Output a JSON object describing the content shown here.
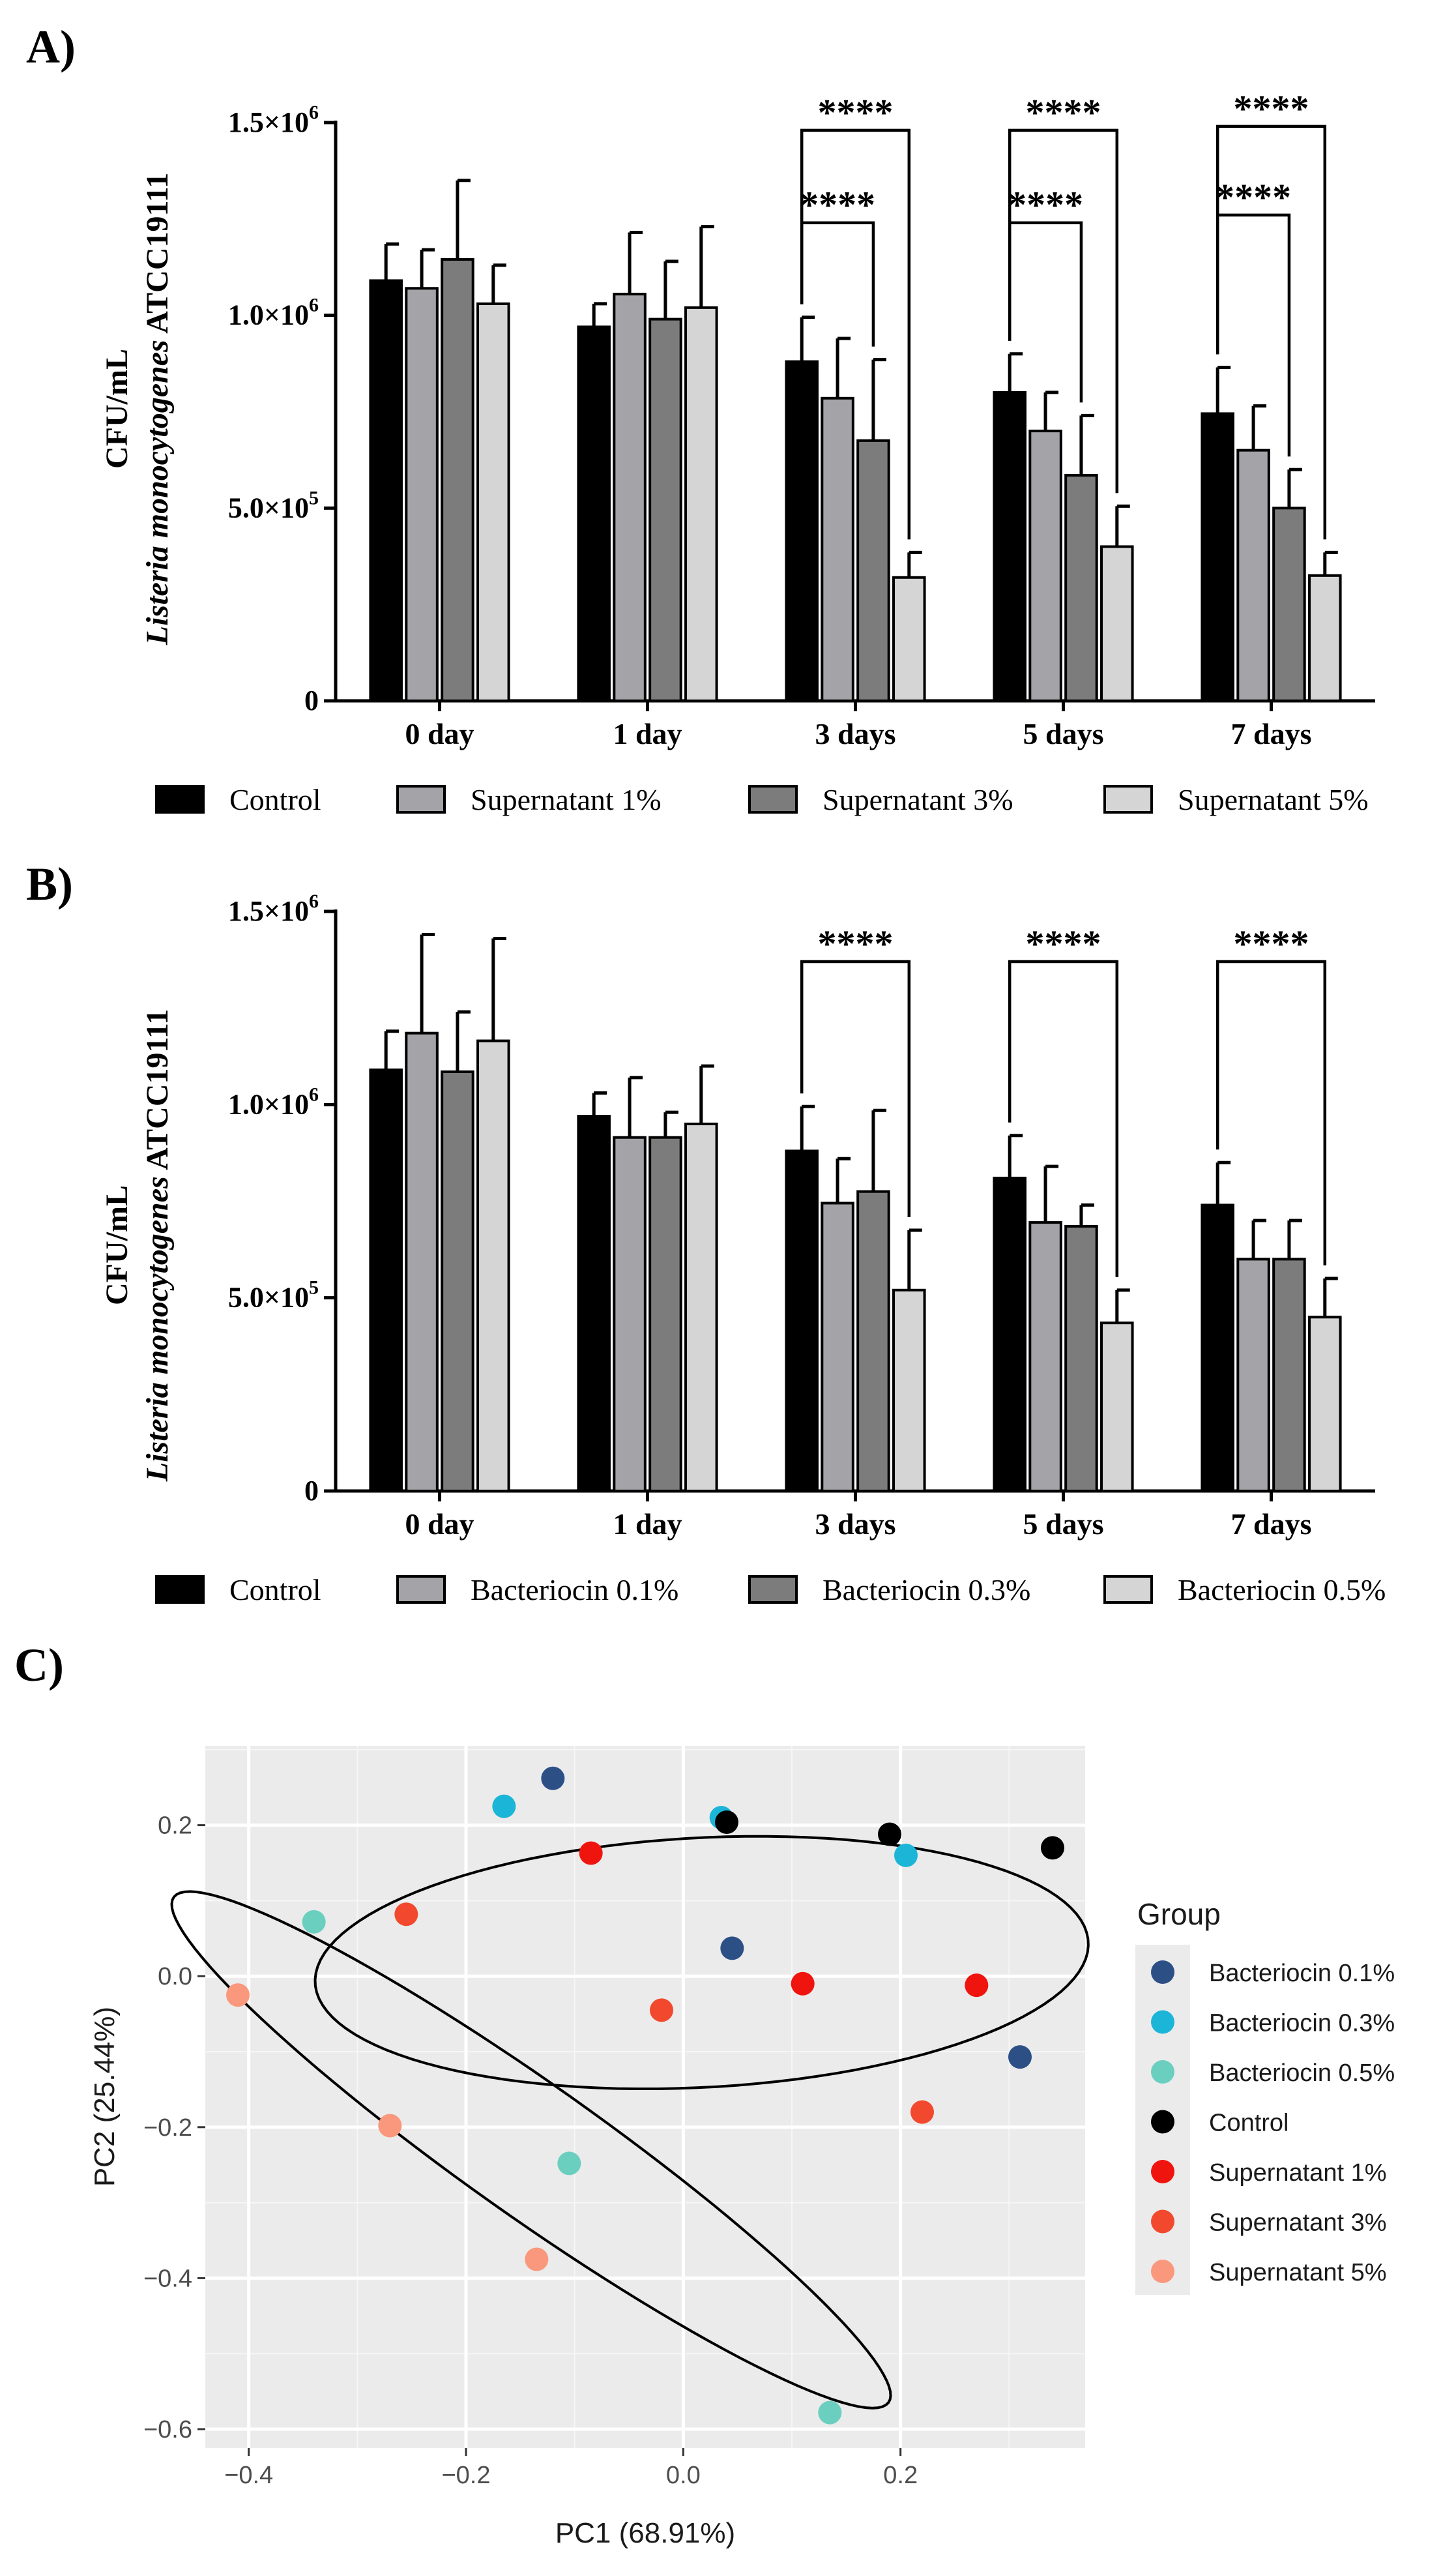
{
  "panels": [
    {
      "label": "A)",
      "chart_data": {
        "type": "bar",
        "ylabel_line1": "CFU/mL",
        "ylabel_line2_italic": "Listeria monocytogenes",
        "ylabel_line2_plain": " ATCC19111",
        "ylim": [
          0,
          1500000
        ],
        "y_ticks": [
          {
            "value": 0,
            "mant": "0",
            "exp": ""
          },
          {
            "value": 500000,
            "mant": "5.0×10",
            "exp": "5"
          },
          {
            "value": 1000000,
            "mant": "1.0×10",
            "exp": "6"
          },
          {
            "value": 1500000,
            "mant": "1.5×10",
            "exp": "6"
          }
        ],
        "categories": [
          "0 day",
          "1 day",
          "3 days",
          "5 days",
          "7 days"
        ],
        "series": [
          {
            "name": "Control",
            "color": "#000000",
            "values": [
              1090000,
              970000,
              880000,
              800000,
              745000
            ],
            "errors": [
              95000,
              60000,
              115000,
              100000,
              120000
            ]
          },
          {
            "name": "Supernatant 1%",
            "color": "#a3a3a8",
            "values": [
              1070000,
              1055000,
              785000,
              700000,
              650000
            ],
            "errors": [
              100000,
              160000,
              155000,
              100000,
              115000
            ]
          },
          {
            "name": "Supernatant 3%",
            "color": "#7c7c7c",
            "values": [
              1145000,
              990000,
              675000,
              585000,
              500000
            ],
            "errors": [
              205000,
              150000,
              210000,
              155000,
              100000
            ]
          },
          {
            "name": "Supernatant 5%",
            "color": "#d5d5d5",
            "values": [
              1030000,
              1020000,
              320000,
              400000,
              325000
            ],
            "errors": [
              100000,
              210000,
              65000,
              105000,
              60000
            ]
          }
        ],
        "brackets": [
          {
            "category": 2,
            "from": 0,
            "to": 2,
            "level": 1.24,
            "text": "****"
          },
          {
            "category": 2,
            "from": 0,
            "to": 3,
            "level": 1.48,
            "text": "****"
          },
          {
            "category": 3,
            "from": 0,
            "to": 2,
            "level": 1.24,
            "text": "****"
          },
          {
            "category": 3,
            "from": 0,
            "to": 3,
            "level": 1.48,
            "text": "****"
          },
          {
            "category": 4,
            "from": 0,
            "to": 2,
            "level": 1.26,
            "text": "****"
          },
          {
            "category": 4,
            "from": 0,
            "to": 3,
            "level": 1.49,
            "text": "****"
          }
        ]
      }
    },
    {
      "label": "B)",
      "chart_data": {
        "type": "bar",
        "ylabel_line1": "CFU/mL",
        "ylabel_line2_italic": "Listeria monocytogenes",
        "ylabel_line2_plain": " ATCC19111",
        "ylim": [
          0,
          1500000
        ],
        "y_ticks": [
          {
            "value": 0,
            "mant": "0",
            "exp": ""
          },
          {
            "value": 500000,
            "mant": "5.0×10",
            "exp": "5"
          },
          {
            "value": 1000000,
            "mant": "1.0×10",
            "exp": "6"
          },
          {
            "value": 1500000,
            "mant": "1.5×10",
            "exp": "6"
          }
        ],
        "categories": [
          "0 day",
          "1 day",
          "3 days",
          "5 days",
          "7 days"
        ],
        "series": [
          {
            "name": "Control",
            "color": "#000000",
            "values": [
              1090000,
              970000,
              880000,
              810000,
              740000
            ],
            "errors": [
              100000,
              60000,
              115000,
              110000,
              110000
            ]
          },
          {
            "name": "Bacteriocin 0.1%",
            "color": "#a3a3a8",
            "values": [
              1185000,
              915000,
              745000,
              695000,
              600000
            ],
            "errors": [
              255000,
              155000,
              115000,
              145000,
              100000
            ]
          },
          {
            "name": "Bacteriocin 0.3%",
            "color": "#7c7c7c",
            "values": [
              1085000,
              915000,
              775000,
              685000,
              600000
            ],
            "errors": [
              155000,
              65000,
              210000,
              55000,
              100000
            ]
          },
          {
            "name": "Bacteriocin 0.5%",
            "color": "#d5d5d5",
            "values": [
              1165000,
              950000,
              520000,
              435000,
              450000
            ],
            "errors": [
              265000,
              150000,
              155000,
              85000,
              100000
            ]
          }
        ],
        "brackets": [
          {
            "category": 2,
            "from": 0,
            "to": 3,
            "level": 1.37,
            "text": "****"
          },
          {
            "category": 3,
            "from": 0,
            "to": 3,
            "level": 1.37,
            "text": "****"
          },
          {
            "category": 4,
            "from": 0,
            "to": 3,
            "level": 1.37,
            "text": "****"
          }
        ]
      }
    }
  ],
  "pca": {
    "label": "C)",
    "chart_data": {
      "type": "scatter",
      "xlabel": "PC1 (68.91%)",
      "ylabel": "PC2 (25.44%)",
      "xlim": [
        -0.44,
        0.37
      ],
      "ylim": [
        -0.625,
        0.305
      ],
      "x_ticks": [
        {
          "value": -0.4,
          "label": "−0.4"
        },
        {
          "value": -0.2,
          "label": "−0.2"
        },
        {
          "value": 0.0,
          "label": "0.0"
        },
        {
          "value": 0.2,
          "label": "0.2"
        }
      ],
      "y_ticks": [
        {
          "value": 0.2,
          "label": "0.2"
        },
        {
          "value": 0.0,
          "label": "0.0"
        },
        {
          "value": -0.2,
          "label": "−0.2"
        },
        {
          "value": -0.4,
          "label": "−0.4"
        },
        {
          "value": -0.6,
          "label": "−0.6"
        }
      ],
      "legend_title": "Group",
      "groups": [
        {
          "name": "Bacteriocin 0.1%",
          "color": "#2c4f86",
          "points": [
            [
              -0.12,
              0.262
            ],
            [
              0.045,
              0.037
            ],
            [
              0.31,
              -0.107
            ]
          ]
        },
        {
          "name": "Bacteriocin 0.3%",
          "color": "#1bb5d8",
          "points": [
            [
              -0.165,
              0.225
            ],
            [
              0.035,
              0.21
            ],
            [
              0.205,
              0.16
            ]
          ]
        },
        {
          "name": "Bacteriocin 0.5%",
          "color": "#6bcfbf",
          "points": [
            [
              -0.34,
              0.072
            ],
            [
              -0.105,
              -0.248
            ],
            [
              0.135,
              -0.578
            ]
          ]
        },
        {
          "name": "Control",
          "color": "#000000",
          "points": [
            [
              0.04,
              0.204
            ],
            [
              0.19,
              0.188
            ],
            [
              0.34,
              0.17
            ]
          ]
        },
        {
          "name": "Supernatant 1%",
          "color": "#f0140e",
          "points": [
            [
              -0.085,
              0.163
            ],
            [
              0.11,
              -0.01
            ],
            [
              0.27,
              -0.012
            ]
          ]
        },
        {
          "name": "Supernatant 3%",
          "color": "#f2492e",
          "points": [
            [
              -0.255,
              0.082
            ],
            [
              -0.02,
              -0.045
            ],
            [
              0.22,
              -0.18
            ]
          ]
        },
        {
          "name": "Supernatant 5%",
          "color": "#f9987c",
          "points": [
            [
              -0.41,
              -0.025
            ],
            [
              -0.27,
              -0.198
            ],
            [
              -0.135,
              -0.375
            ]
          ]
        }
      ],
      "ellipses": [
        {
          "center": [
            0.017,
            0.018
          ],
          "rx": 0.357,
          "ry": 0.165,
          "angle_deg": 5
        },
        {
          "center": [
            -0.14,
            -0.23
          ],
          "rx": 0.47,
          "ry": 0.075,
          "angle_deg": -46
        }
      ]
    }
  }
}
